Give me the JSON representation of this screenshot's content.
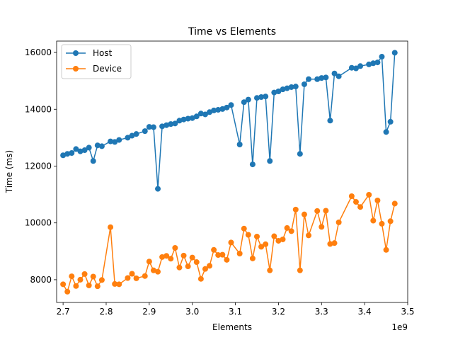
{
  "chart_data": {
    "type": "line",
    "title": "Time vs Elements",
    "xlabel": "Elements",
    "ylabel": "Time (ms)",
    "x_offset_label": "1e9",
    "x_scale": 1000000000,
    "xlim": [
      2.685,
      3.5
    ],
    "ylim": [
      7200,
      16400
    ],
    "xticks": [
      2.7,
      2.8,
      2.9,
      3.0,
      3.1,
      3.2,
      3.3,
      3.4,
      3.5
    ],
    "xtick_labels": [
      "2.7",
      "2.8",
      "2.9",
      "3.0",
      "3.1",
      "3.2",
      "3.3",
      "3.4",
      "3.5"
    ],
    "yticks": [
      8000,
      10000,
      12000,
      14000,
      16000
    ],
    "ytick_labels": [
      "8000",
      "10000",
      "12000",
      "14000",
      "16000"
    ],
    "grid": false,
    "legend_position": "top-left",
    "x": [
      2.7,
      2.71,
      2.72,
      2.73,
      2.74,
      2.75,
      2.76,
      2.77,
      2.78,
      2.79,
      2.81,
      2.82,
      2.83,
      2.85,
      2.86,
      2.87,
      2.89,
      2.9,
      2.91,
      2.92,
      2.93,
      2.94,
      2.95,
      2.96,
      2.97,
      2.98,
      2.99,
      3.0,
      3.01,
      3.02,
      3.03,
      3.04,
      3.05,
      3.06,
      3.07,
      3.08,
      3.09,
      3.11,
      3.12,
      3.13,
      3.14,
      3.15,
      3.16,
      3.17,
      3.18,
      3.19,
      3.2,
      3.21,
      3.22,
      3.23,
      3.24,
      3.25,
      3.26,
      3.27,
      3.29,
      3.3,
      3.31,
      3.32,
      3.33,
      3.34,
      3.37,
      3.38,
      3.39,
      3.41,
      3.42,
      3.43,
      3.44,
      3.45,
      3.46,
      3.47
    ],
    "series": [
      {
        "name": "Host",
        "color": "#1f77b4",
        "values": [
          12380,
          12430,
          12460,
          12600,
          12520,
          12560,
          12650,
          12180,
          12730,
          12700,
          12870,
          12850,
          12920,
          13000,
          13070,
          13130,
          13230,
          13380,
          13370,
          11200,
          13400,
          13440,
          13480,
          13500,
          13600,
          13640,
          13670,
          13690,
          13750,
          13850,
          13820,
          13900,
          13960,
          13980,
          14010,
          14060,
          14150,
          12760,
          14250,
          14340,
          12060,
          14400,
          14430,
          14450,
          12180,
          14590,
          14630,
          14700,
          14740,
          14780,
          14800,
          12430,
          14880,
          15060,
          15060,
          15100,
          15120,
          13600,
          15260,
          15160,
          15460,
          15440,
          15520,
          15580,
          15620,
          15650,
          15850,
          13200,
          13560,
          15990
        ]
      },
      {
        "name": "Device",
        "color": "#ff7f0e",
        "values": [
          7840,
          7580,
          8120,
          7780,
          8000,
          8200,
          7800,
          8110,
          7770,
          7990,
          9850,
          7850,
          7840,
          8060,
          8210,
          8050,
          8130,
          8640,
          8330,
          8280,
          8800,
          8840,
          8740,
          9120,
          8430,
          8850,
          8470,
          8780,
          8620,
          8030,
          8380,
          8490,
          9050,
          8870,
          8880,
          8700,
          9310,
          8920,
          9800,
          9580,
          8750,
          9520,
          9160,
          9250,
          8330,
          9530,
          9370,
          9420,
          9820,
          9710,
          10470,
          8330,
          10300,
          9560,
          10420,
          9860,
          10430,
          9260,
          9290,
          10020,
          10940,
          10740,
          10560,
          10990,
          10080,
          10790,
          9970,
          9050,
          10060,
          10680
        ]
      }
    ]
  }
}
